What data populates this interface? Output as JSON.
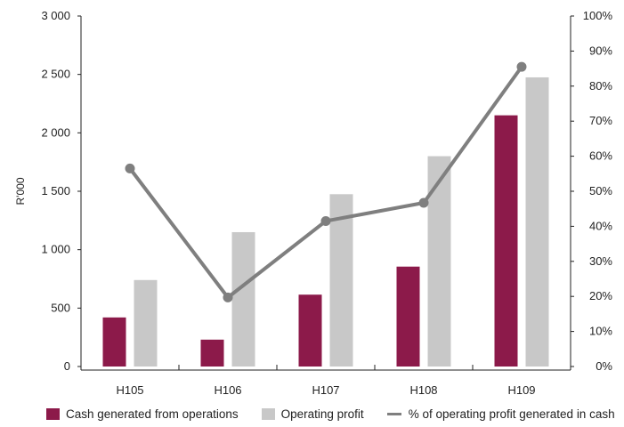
{
  "chart_data": {
    "type": "bar",
    "categories": [
      "H105",
      "H106",
      "H107",
      "H108",
      "H109"
    ],
    "series": [
      {
        "name": "Cash generated from operations",
        "kind": "bar",
        "axis": "left",
        "color": "#8c1a4a",
        "values": [
          420,
          230,
          615,
          855,
          2150
        ]
      },
      {
        "name": "Operating profit",
        "kind": "bar",
        "axis": "left",
        "color": "#c8c8c8",
        "values": [
          740,
          1150,
          1475,
          1800,
          2475
        ]
      },
      {
        "name": "% of operating profit generated in cash",
        "kind": "line",
        "axis": "right",
        "color": "#7f7f7f",
        "values": [
          56.5,
          19.7,
          41.5,
          46.7,
          85.5
        ]
      }
    ],
    "ylabel": "R'000",
    "ylim": [
      0,
      3000
    ],
    "yticks": [
      "0",
      "500",
      "1 000",
      "1 500",
      "2 000",
      "2 500",
      "3 000"
    ],
    "ytick_values": [
      0,
      500,
      1000,
      1500,
      2000,
      2500,
      3000
    ],
    "y2lim": [
      0,
      100
    ],
    "y2ticks": [
      "0%",
      "10%",
      "20%",
      "30%",
      "40%",
      "50%",
      "60%",
      "70%",
      "80%",
      "90%",
      "100%"
    ],
    "y2tick_values": [
      0,
      10,
      20,
      30,
      40,
      50,
      60,
      70,
      80,
      90,
      100
    ],
    "grid": false,
    "legend_position": "bottom"
  }
}
